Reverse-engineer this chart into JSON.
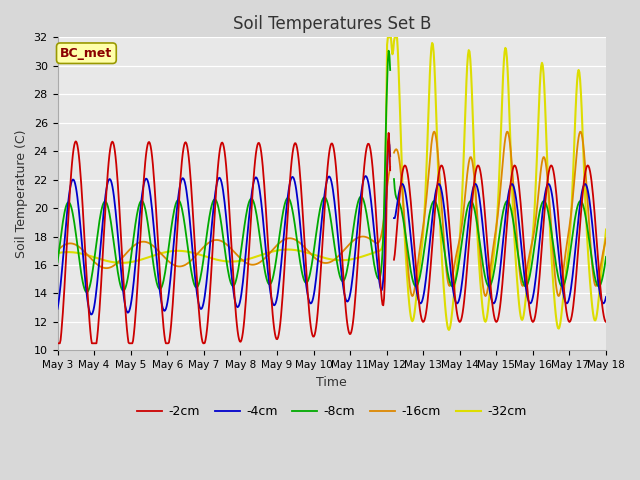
{
  "title": "Soil Temperatures Set B",
  "xlabel": "Time",
  "ylabel": "Soil Temperature (C)",
  "ylim": [
    10,
    32
  ],
  "yticks": [
    10,
    12,
    14,
    16,
    18,
    20,
    22,
    24,
    26,
    28,
    30,
    32
  ],
  "annotation": "BC_met",
  "fig_bg": "#d8d8d8",
  "plot_bg": "#e8e8e8",
  "line_colors": {
    "-2cm": "#cc0000",
    "-4cm": "#0000cc",
    "-8cm": "#00aa00",
    "-16cm": "#dd8800",
    "-32cm": "#dddd00"
  },
  "legend_labels": [
    "-2cm",
    "-4cm",
    "-8cm",
    "-16cm",
    "-32cm"
  ],
  "x_tick_labels": [
    "May 3",
    "May 4",
    "May 5",
    "May 6",
    "May 7",
    "May 8",
    "May 9",
    "May 10",
    "May 11",
    "May 12",
    "May 13",
    "May 14",
    "May 15",
    "May 16",
    "May 17",
    "May 18"
  ],
  "num_days": 15,
  "figsize": [
    6.4,
    4.8
  ],
  "dpi": 100
}
